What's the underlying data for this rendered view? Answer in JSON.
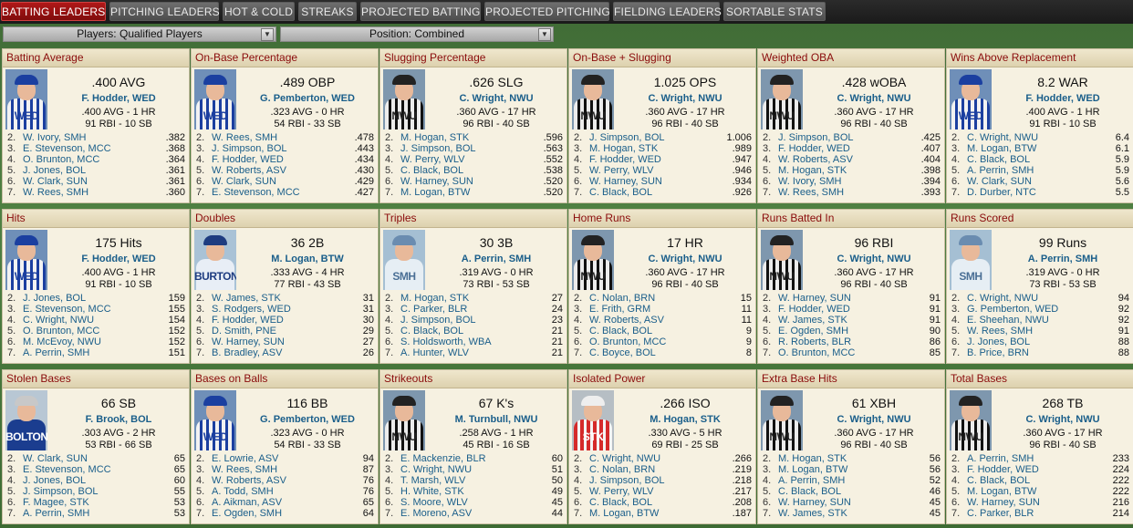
{
  "tabs": [
    {
      "label": "BATTING LEADERS",
      "active": true
    },
    {
      "label": "PITCHING LEADERS",
      "active": false
    },
    {
      "label": "HOT & COLD",
      "active": false
    },
    {
      "label": "STREAKS",
      "active": false
    },
    {
      "label": "PROJECTED BATTING",
      "active": false
    },
    {
      "label": "PROJECTED PITCHING",
      "active": false
    },
    {
      "label": "FIELDING LEADERS",
      "active": false
    },
    {
      "label": "SORTABLE STATS",
      "active": false
    }
  ],
  "filters": {
    "players": "Players: Qualified Players",
    "position": "Position: Combined"
  },
  "cards": [
    {
      "title": "Batting Average",
      "value": ".400 AVG",
      "leader": "F. Hodder, WED",
      "line1": ".400 AVG - 1 HR",
      "line2": "91 RBI - 10 SB",
      "uniform": "WED",
      "list": [
        [
          "2.",
          "W. Ivory, SMH",
          ".382"
        ],
        [
          "3.",
          "E. Stevenson, MCC",
          ".368"
        ],
        [
          "4.",
          "O. Brunton, MCC",
          ".364"
        ],
        [
          "5.",
          "J. Jones, BOL",
          ".361"
        ],
        [
          "6.",
          "W. Clark, SUN",
          ".361"
        ],
        [
          "7.",
          "W. Rees, SMH",
          ".360"
        ]
      ]
    },
    {
      "title": "On-Base Percentage",
      "value": ".489 OBP",
      "leader": "G. Pemberton, WED",
      "line1": ".323 AVG - 0 HR",
      "line2": "54 RBI - 33 SB",
      "uniform": "WED",
      "list": [
        [
          "2.",
          "W. Rees, SMH",
          ".478"
        ],
        [
          "3.",
          "J. Simpson, BOL",
          ".443"
        ],
        [
          "4.",
          "F. Hodder, WED",
          ".434"
        ],
        [
          "5.",
          "W. Roberts, ASV",
          ".430"
        ],
        [
          "6.",
          "W. Clark, SUN",
          ".429"
        ],
        [
          "7.",
          "E. Stevenson, MCC",
          ".427"
        ]
      ]
    },
    {
      "title": "Slugging Percentage",
      "value": ".626 SLG",
      "leader": "C. Wright, NWU",
      "line1": ".360 AVG - 17 HR",
      "line2": "96 RBI - 40 SB",
      "uniform": "NWU",
      "list": [
        [
          "2.",
          "M. Hogan, STK",
          ".596"
        ],
        [
          "3.",
          "J. Simpson, BOL",
          ".563"
        ],
        [
          "4.",
          "W. Perry, WLV",
          ".552"
        ],
        [
          "5.",
          "C. Black, BOL",
          ".538"
        ],
        [
          "6.",
          "W. Harney, SUN",
          ".520"
        ],
        [
          "7.",
          "M. Logan, BTW",
          ".520"
        ]
      ]
    },
    {
      "title": "On-Base + Slugging",
      "value": "1.025 OPS",
      "leader": "C. Wright, NWU",
      "line1": ".360 AVG - 17 HR",
      "line2": "96 RBI - 40 SB",
      "uniform": "NWU",
      "list": [
        [
          "2.",
          "J. Simpson, BOL",
          "1.006"
        ],
        [
          "3.",
          "M. Hogan, STK",
          ".989"
        ],
        [
          "4.",
          "F. Hodder, WED",
          ".947"
        ],
        [
          "5.",
          "W. Perry, WLV",
          ".946"
        ],
        [
          "6.",
          "W. Harney, SUN",
          ".934"
        ],
        [
          "7.",
          "C. Black, BOL",
          ".926"
        ]
      ]
    },
    {
      "title": "Weighted OBA",
      "value": ".428 wOBA",
      "leader": "C. Wright, NWU",
      "line1": ".360 AVG - 17 HR",
      "line2": "96 RBI - 40 SB",
      "uniform": "NWU",
      "list": [
        [
          "2.",
          "J. Simpson, BOL",
          ".425"
        ],
        [
          "3.",
          "F. Hodder, WED",
          ".407"
        ],
        [
          "4.",
          "W. Roberts, ASV",
          ".404"
        ],
        [
          "5.",
          "M. Hogan, STK",
          ".398"
        ],
        [
          "6.",
          "W. Ivory, SMH",
          ".394"
        ],
        [
          "7.",
          "W. Rees, SMH",
          ".393"
        ]
      ]
    },
    {
      "title": "Wins Above Replacement",
      "value": "8.2 WAR",
      "leader": "F. Hodder, WED",
      "line1": ".400 AVG - 1 HR",
      "line2": "91 RBI - 10 SB",
      "uniform": "WED",
      "list": [
        [
          "2.",
          "C. Wright, NWU",
          "6.4"
        ],
        [
          "3.",
          "M. Logan, BTW",
          "6.1"
        ],
        [
          "4.",
          "C. Black, BOL",
          "5.9"
        ],
        [
          "5.",
          "A. Perrin, SMH",
          "5.9"
        ],
        [
          "6.",
          "W. Clark, SUN",
          "5.6"
        ],
        [
          "7.",
          "D. Durber, NTC",
          "5.5"
        ]
      ]
    },
    {
      "title": "Hits",
      "value": "175 Hits",
      "leader": "F. Hodder, WED",
      "line1": ".400 AVG - 1 HR",
      "line2": "91 RBI - 10 SB",
      "uniform": "WED",
      "list": [
        [
          "2.",
          "J. Jones, BOL",
          "159"
        ],
        [
          "3.",
          "E. Stevenson, MCC",
          "155"
        ],
        [
          "4.",
          "C. Wright, NWU",
          "154"
        ],
        [
          "5.",
          "O. Brunton, MCC",
          "152"
        ],
        [
          "6.",
          "M. McEvoy, NWU",
          "152"
        ],
        [
          "7.",
          "A. Perrin, SMH",
          "151"
        ]
      ]
    },
    {
      "title": "Doubles",
      "value": "36 2B",
      "leader": "M. Logan, BTW",
      "line1": ".333 AVG - 4 HR",
      "line2": "77 RBI - 43 SB",
      "uniform": "BURTON",
      "list": [
        [
          "2.",
          "W. James, STK",
          "31"
        ],
        [
          "3.",
          "S. Rodgers, WED",
          "31"
        ],
        [
          "4.",
          "F. Hodder, WED",
          "30"
        ],
        [
          "5.",
          "D. Smith, PNE",
          "29"
        ],
        [
          "6.",
          "W. Harney, SUN",
          "27"
        ],
        [
          "7.",
          "B. Bradley, ASV",
          "26"
        ]
      ]
    },
    {
      "title": "Triples",
      "value": "30 3B",
      "leader": "A. Perrin, SMH",
      "line1": ".319 AVG - 0 HR",
      "line2": "73 RBI - 53 SB",
      "uniform": "SMH",
      "list": [
        [
          "2.",
          "M. Hogan, STK",
          "27"
        ],
        [
          "3.",
          "C. Parker, BLR",
          "24"
        ],
        [
          "4.",
          "J. Simpson, BOL",
          "23"
        ],
        [
          "5.",
          "C. Black, BOL",
          "21"
        ],
        [
          "6.",
          "S. Holdsworth, WBA",
          "21"
        ],
        [
          "7.",
          "A. Hunter, WLV",
          "21"
        ]
      ]
    },
    {
      "title": "Home Runs",
      "value": "17 HR",
      "leader": "C. Wright, NWU",
      "line1": ".360 AVG - 17 HR",
      "line2": "96 RBI - 40 SB",
      "uniform": "NWU",
      "list": [
        [
          "2.",
          "C. Nolan, BRN",
          "15"
        ],
        [
          "3.",
          "E. Frith, GRM",
          "11"
        ],
        [
          "4.",
          "W. Roberts, ASV",
          "11"
        ],
        [
          "5.",
          "C. Black, BOL",
          "9"
        ],
        [
          "6.",
          "O. Brunton, MCC",
          "9"
        ],
        [
          "7.",
          "C. Boyce, BOL",
          "8"
        ]
      ]
    },
    {
      "title": "Runs Batted In",
      "value": "96 RBI",
      "leader": "C. Wright, NWU",
      "line1": ".360 AVG - 17 HR",
      "line2": "96 RBI - 40 SB",
      "uniform": "NWU",
      "list": [
        [
          "2.",
          "W. Harney, SUN",
          "91"
        ],
        [
          "3.",
          "F. Hodder, WED",
          "91"
        ],
        [
          "4.",
          "W. James, STK",
          "91"
        ],
        [
          "5.",
          "E. Ogden, SMH",
          "90"
        ],
        [
          "6.",
          "R. Roberts, BLR",
          "86"
        ],
        [
          "7.",
          "O. Brunton, MCC",
          "85"
        ]
      ]
    },
    {
      "title": "Runs Scored",
      "value": "99 Runs",
      "leader": "A. Perrin, SMH",
      "line1": ".319 AVG - 0 HR",
      "line2": "73 RBI - 53 SB",
      "uniform": "SMH",
      "list": [
        [
          "2.",
          "C. Wright, NWU",
          "94"
        ],
        [
          "3.",
          "G. Pemberton, WED",
          "92"
        ],
        [
          "4.",
          "E. Sheehan, NWU",
          "92"
        ],
        [
          "5.",
          "W. Rees, SMH",
          "91"
        ],
        [
          "6.",
          "J. Jones, BOL",
          "88"
        ],
        [
          "7.",
          "B. Price, BRN",
          "88"
        ]
      ]
    },
    {
      "title": "Stolen Bases",
      "value": "66 SB",
      "leader": "F. Brook, BOL",
      "line1": ".303 AVG - 2 HR",
      "line2": "53 RBI - 66 SB",
      "uniform": "BOLTON",
      "list": [
        [
          "2.",
          "W. Clark, SUN",
          "65"
        ],
        [
          "3.",
          "E. Stevenson, MCC",
          "65"
        ],
        [
          "4.",
          "J. Jones, BOL",
          "60"
        ],
        [
          "5.",
          "J. Simpson, BOL",
          "55"
        ],
        [
          "6.",
          "F. Magee, STK",
          "53"
        ],
        [
          "7.",
          "A. Perrin, SMH",
          "53"
        ]
      ]
    },
    {
      "title": "Bases on Balls",
      "value": "116 BB",
      "leader": "G. Pemberton, WED",
      "line1": ".323 AVG - 0 HR",
      "line2": "54 RBI - 33 SB",
      "uniform": "WED",
      "list": [
        [
          "2.",
          "E. Lowrie, ASV",
          "94"
        ],
        [
          "3.",
          "W. Rees, SMH",
          "87"
        ],
        [
          "4.",
          "W. Roberts, ASV",
          "76"
        ],
        [
          "5.",
          "A. Todd, SMH",
          "76"
        ],
        [
          "6.",
          "A. Aikman, ASV",
          "65"
        ],
        [
          "7.",
          "E. Ogden, SMH",
          "64"
        ]
      ]
    },
    {
      "title": "Strikeouts",
      "value": "67 K's",
      "leader": "M. Turnbull, NWU",
      "line1": ".258 AVG - 1 HR",
      "line2": "45 RBI - 16 SB",
      "uniform": "NWU",
      "list": [
        [
          "2.",
          "E. Mackenzie, BLR",
          "60"
        ],
        [
          "3.",
          "C. Wright, NWU",
          "51"
        ],
        [
          "4.",
          "T. Marsh, WLV",
          "50"
        ],
        [
          "5.",
          "H. White, STK",
          "49"
        ],
        [
          "6.",
          "S. Moore, WLV",
          "45"
        ],
        [
          "7.",
          "E. Moreno, ASV",
          "44"
        ]
      ]
    },
    {
      "title": "Isolated Power",
      "value": ".266 ISO",
      "leader": "M. Hogan, STK",
      "line1": ".330 AVG - 5 HR",
      "line2": "69 RBI - 25 SB",
      "uniform": "STK",
      "list": [
        [
          "2.",
          "C. Wright, NWU",
          ".266"
        ],
        [
          "3.",
          "C. Nolan, BRN",
          ".219"
        ],
        [
          "4.",
          "J. Simpson, BOL",
          ".218"
        ],
        [
          "5.",
          "W. Perry, WLV",
          ".217"
        ],
        [
          "6.",
          "C. Black, BOL",
          ".208"
        ],
        [
          "7.",
          "M. Logan, BTW",
          ".187"
        ]
      ]
    },
    {
      "title": "Extra Base Hits",
      "value": "61 XBH",
      "leader": "C. Wright, NWU",
      "line1": ".360 AVG - 17 HR",
      "line2": "96 RBI - 40 SB",
      "uniform": "NWU",
      "list": [
        [
          "2.",
          "M. Hogan, STK",
          "56"
        ],
        [
          "3.",
          "M. Logan, BTW",
          "56"
        ],
        [
          "4.",
          "A. Perrin, SMH",
          "52"
        ],
        [
          "5.",
          "C. Black, BOL",
          "46"
        ],
        [
          "6.",
          "W. Harney, SUN",
          "45"
        ],
        [
          "7.",
          "W. James, STK",
          "45"
        ]
      ]
    },
    {
      "title": "Total Bases",
      "value": "268 TB",
      "leader": "C. Wright, NWU",
      "line1": ".360 AVG - 17 HR",
      "line2": "96 RBI - 40 SB",
      "uniform": "NWU",
      "list": [
        [
          "2.",
          "A. Perrin, SMH",
          "233"
        ],
        [
          "3.",
          "F. Hodder, WED",
          "224"
        ],
        [
          "4.",
          "C. Black, BOL",
          "222"
        ],
        [
          "5.",
          "M. Logan, BTW",
          "222"
        ],
        [
          "6.",
          "W. Harney, SUN",
          "216"
        ],
        [
          "7.",
          "C. Parker, BLR",
          "214"
        ]
      ]
    }
  ]
}
